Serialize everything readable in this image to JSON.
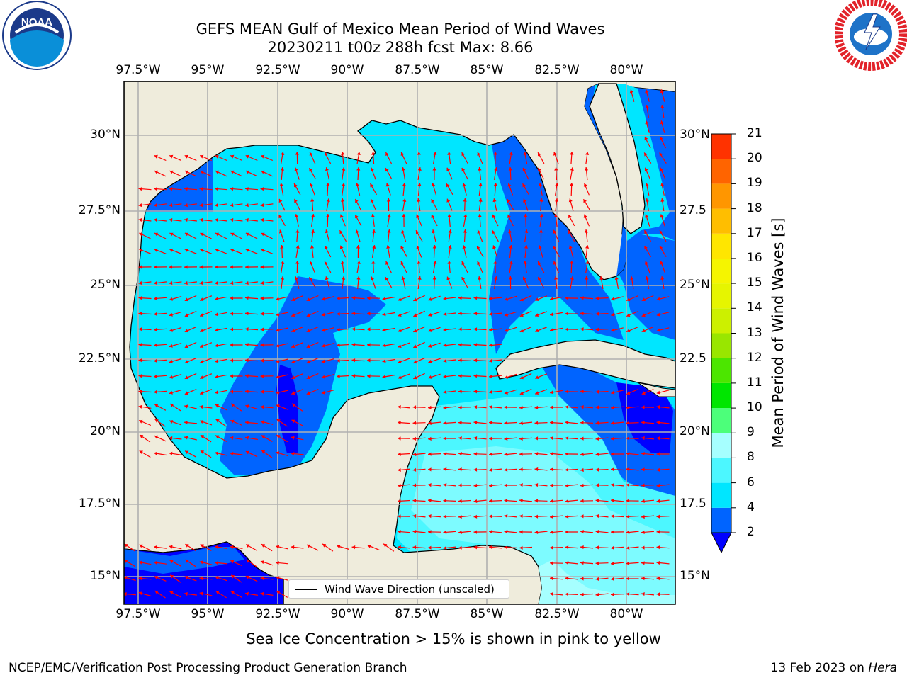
{
  "header": {
    "title_line1": "GEFS MEAN Gulf of Mexico Mean Period of Wind Waves",
    "title_line2": "20230211 t00z 288h fcst   Max: 8.66"
  },
  "logos": {
    "left": {
      "name": "noaa-logo",
      "text": "NOAA"
    },
    "right": {
      "name": "nws-logo",
      "text": "NATIONAL WEATHER SERVICE"
    }
  },
  "map": {
    "lon_labels": [
      "97.5°W",
      "95°W",
      "92.5°W",
      "90°W",
      "87.5°W",
      "85°W",
      "82.5°W",
      "80°W"
    ],
    "lat_labels_left": [
      "30°N",
      "27.5°N",
      "25°N",
      "22.5°N",
      "20°N",
      "17.5°N",
      "15°N"
    ],
    "lat_labels_right": [
      "30°N",
      "27.5",
      "25°N",
      "22.5",
      "20°N",
      "17.5",
      "15°N"
    ],
    "lon_range": [
      -98,
      -78.2
    ],
    "lat_range": [
      14,
      31.6
    ],
    "colors": {
      "land": "#efecdc",
      "arrow": "#ff0000",
      "coast": "#000000",
      "grid": "#b0b0b0"
    },
    "legend_label": "Wind Wave Direction (unscaled)"
  },
  "colorbar": {
    "title": "Mean Period of Wind Waves [s]",
    "levels": [
      "2",
      "4",
      "6",
      "8",
      "9",
      "10",
      "11",
      "12",
      "13",
      "14",
      "15",
      "16",
      "17",
      "18",
      "19",
      "20",
      "21"
    ],
    "colors": [
      "#0064ff",
      "#00e6ff",
      "#4cf7ff",
      "#a6ffff",
      "#4cff7a",
      "#00e600",
      "#4ce600",
      "#99e600",
      "#ccf000",
      "#e6f500",
      "#f5f500",
      "#ffe600",
      "#ffbe00",
      "#ff9600",
      "#ff6400",
      "#ff3200",
      "#ff0000"
    ],
    "under_color": "#0000ff"
  },
  "notes": {
    "ice": "Sea Ice Concentration > 15% is shown in pink to yellow"
  },
  "footer": {
    "left": "NCEP/EMC/Verification Post Processing Product Generation Branch",
    "right_prefix": "13 Feb 2023 on ",
    "right_host": "Hera"
  }
}
